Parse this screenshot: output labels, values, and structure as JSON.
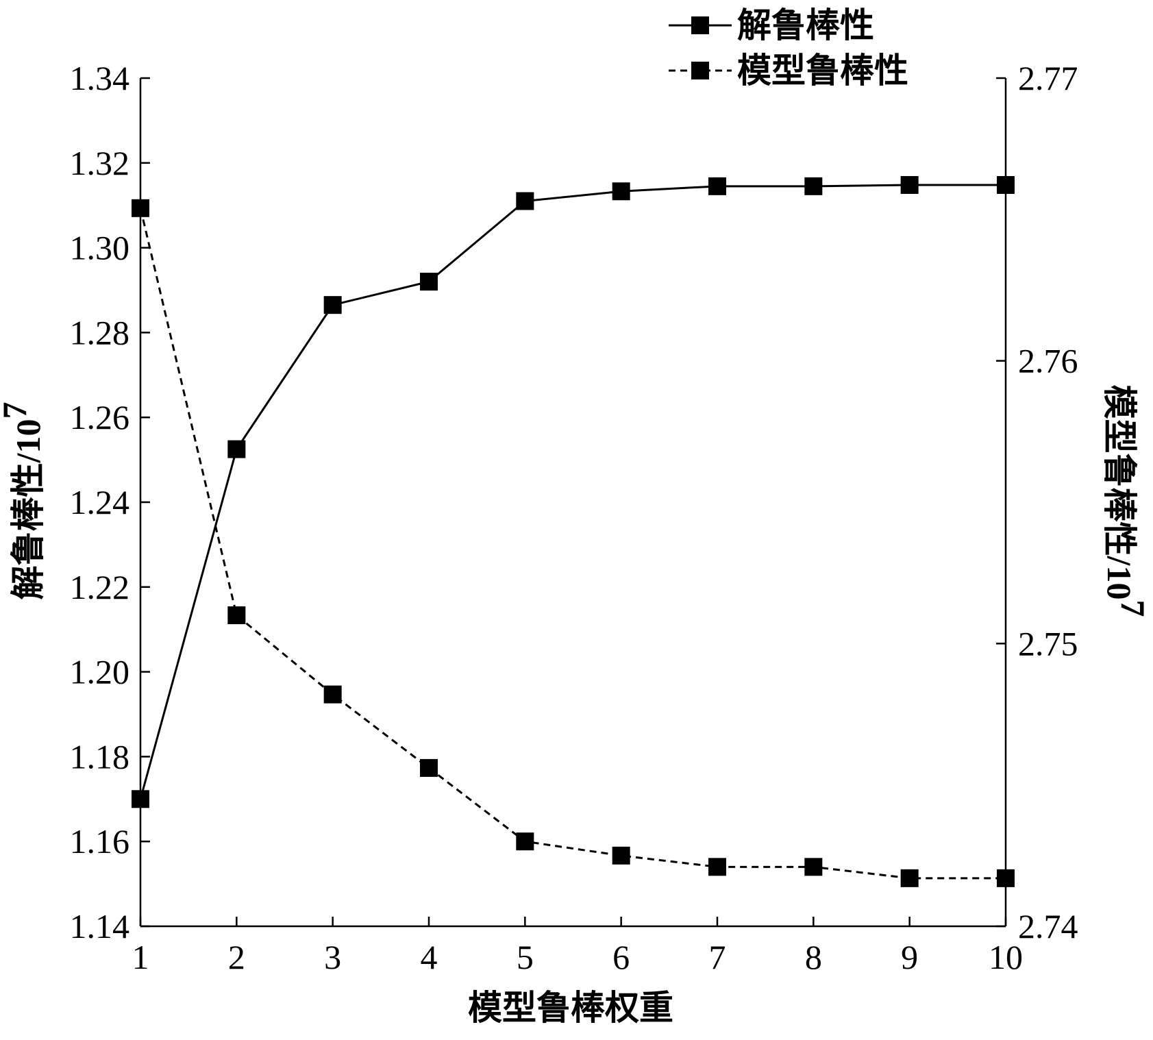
{
  "chart_data": {
    "type": "line",
    "x": [
      1,
      2,
      3,
      4,
      5,
      6,
      7,
      8,
      9,
      10
    ],
    "xlabel": "模型鲁棒权重",
    "xlim": [
      1,
      10
    ],
    "xticks": [
      "1",
      "2",
      "3",
      "4",
      "5",
      "6",
      "7",
      "8",
      "9",
      "10"
    ],
    "left_axis": {
      "label_main": "解鲁棒性",
      "label_unit_base": "/10",
      "label_unit_exp": "7",
      "ylim": [
        1.14,
        1.34
      ],
      "ticks": [
        1.14,
        1.16,
        1.18,
        1.2,
        1.22,
        1.24,
        1.26,
        1.28,
        1.3,
        1.32,
        1.34
      ],
      "tick_labels": [
        "1.14",
        "1.16",
        "1.18",
        "1.20",
        "1.22",
        "1.24",
        "1.26",
        "1.28",
        "1.30",
        "1.32",
        "1.34"
      ]
    },
    "right_axis": {
      "label_main": "模型鲁棒性",
      "label_unit_base": "/10",
      "label_unit_exp": "7",
      "ylim": [
        2.74,
        2.77
      ],
      "ticks": [
        2.74,
        2.75,
        2.76,
        2.77
      ],
      "tick_labels": [
        "2.74",
        "2.75",
        "2.76",
        "2.77"
      ]
    },
    "series": [
      {
        "name": "解鲁棒性",
        "axis": "left",
        "line_style": "solid",
        "marker": "square",
        "values": [
          1.17,
          1.2525,
          1.2865,
          1.292,
          1.311,
          1.3133,
          1.3145,
          1.3145,
          1.3148,
          1.3148
        ]
      },
      {
        "name": "模型鲁棒性",
        "axis": "right",
        "line_style": "dashed",
        "marker": "square",
        "values": [
          2.7654,
          2.751,
          2.7482,
          2.7456,
          2.743,
          2.7425,
          2.7421,
          2.7421,
          2.7417,
          2.7417
        ]
      }
    ],
    "legend_position": "top-right",
    "grid": false,
    "color": "#000000"
  }
}
